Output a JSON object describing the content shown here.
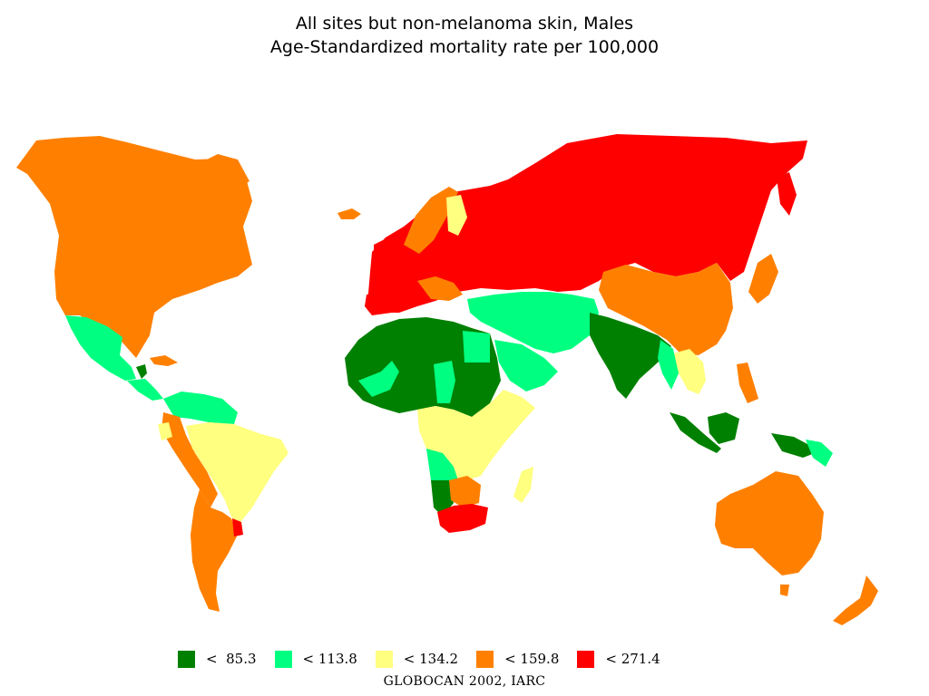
{
  "title": {
    "line1": "All sites but non-melanoma skin, Males",
    "line2": "Age-Standardized mortality rate per 100,000"
  },
  "legend": [
    {
      "label": "<  85.3",
      "color": "#008000"
    },
    {
      "label": "< 113.8",
      "color": "#00ff80"
    },
    {
      "label": "< 134.2",
      "color": "#ffff80"
    },
    {
      "label": "< 159.8",
      "color": "#ff8000"
    },
    {
      "label": "< 271.4",
      "color": "#ff0000"
    }
  ],
  "source": "GLOBOCAN 2002, IARC"
}
